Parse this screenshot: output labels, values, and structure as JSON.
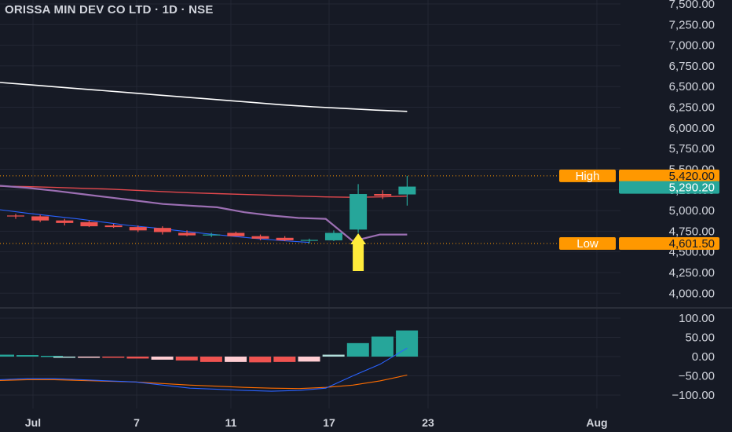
{
  "header": {
    "title": "ORISSA MIN DEV CO LTD · 1D · NSE"
  },
  "colors": {
    "background": "#161a25",
    "grid": "#232734",
    "up": "#26a69a",
    "down": "#ef5350",
    "ma_white": "#ffffff",
    "ma_red": "#e5484d",
    "ma_purple": "#9c6fb3",
    "ma_blue": "#2962ff",
    "tag_orange": "#ff9800",
    "arrow": "#ffeb3b",
    "macd_line": "#2962ff",
    "signal_line": "#ff6d00"
  },
  "chart_data": [
    {
      "type": "candlestick",
      "title": "ORISSA MIN DEV CO LTD · 1D · NSE",
      "x_ticks": [
        "Jul",
        "7",
        "11",
        "17",
        "23",
        "Aug"
      ],
      "y_ticks": [
        "7,500.00",
        "7,250.00",
        "7,000.00",
        "6,750.00",
        "6,500.00",
        "6,250.00",
        "6,000.00",
        "5,750.00",
        "5,500.00",
        "5,250.00",
        "5,000.00",
        "4,750.00",
        "4,500.00",
        "4,250.00",
        "4,000.00"
      ],
      "ylim": [
        3900,
        7550
      ],
      "candles": [
        {
          "date": "Jun 28",
          "open": 4940,
          "high": 4960,
          "low": 4900,
          "close": 4935
        },
        {
          "date": "Jul 1",
          "open": 4930,
          "high": 4950,
          "low": 4860,
          "close": 4880
        },
        {
          "date": "Jul 2",
          "open": 4880,
          "high": 4900,
          "low": 4820,
          "close": 4850
        },
        {
          "date": "Jul 3",
          "open": 4860,
          "high": 4880,
          "low": 4800,
          "close": 4810
        },
        {
          "date": "Jul 4",
          "open": 4820,
          "high": 4840,
          "low": 4790,
          "close": 4800
        },
        {
          "date": "Jul 5",
          "open": 4800,
          "high": 4820,
          "low": 4740,
          "close": 4760
        },
        {
          "date": "Jul 8",
          "open": 4790,
          "high": 4810,
          "low": 4710,
          "close": 4740
        },
        {
          "date": "Jul 9",
          "open": 4730,
          "high": 4760,
          "low": 4690,
          "close": 4700
        },
        {
          "date": "Jul 10",
          "open": 4700,
          "high": 4730,
          "low": 4680,
          "close": 4710
        },
        {
          "date": "Jul 11",
          "open": 4730,
          "high": 4745,
          "low": 4690,
          "close": 4690
        },
        {
          "date": "Jul 12",
          "open": 4690,
          "high": 4710,
          "low": 4640,
          "close": 4660
        },
        {
          "date": "Jul 15",
          "open": 4670,
          "high": 4690,
          "low": 4630,
          "close": 4640
        },
        {
          "date": "Jul 16",
          "open": 4640,
          "high": 4660,
          "low": 4602,
          "close": 4645
        },
        {
          "date": "Jul 18",
          "open": 4640,
          "high": 4760,
          "low": 4630,
          "close": 4730
        },
        {
          "date": "Jul 19",
          "open": 4770,
          "high": 5320,
          "low": 4730,
          "close": 5200
        },
        {
          "date": "Jul 22",
          "open": 5200,
          "high": 5245,
          "low": 5140,
          "close": 5180
        },
        {
          "date": "Jul 23",
          "open": 5195,
          "high": 5420,
          "low": 5060,
          "close": 5290
        }
      ],
      "moving_averages": [
        {
          "color": "white",
          "values": [
            6550,
            6520,
            6490,
            6460,
            6430,
            6400,
            6370,
            6340,
            6310,
            6280,
            6255,
            6235,
            6215,
            6200
          ]
        },
        {
          "color": "red",
          "values": [
            5295,
            5290,
            5280,
            5270,
            5260,
            5245,
            5230,
            5215,
            5205,
            5195,
            5185,
            5175,
            5165,
            5160,
            5165,
            5175
          ]
        },
        {
          "color": "purple",
          "values": [
            5300,
            5275,
            5240,
            5200,
            5160,
            5120,
            5080,
            5060,
            5040,
            4980,
            4940,
            4910,
            4900,
            4630,
            4710,
            4710
          ]
        },
        {
          "color": "blue",
          "values": [
            5010,
            4970,
            4935,
            4900,
            4860,
            4820,
            4790,
            4755,
            4720,
            4690,
            4660,
            4635,
            4615
          ]
        }
      ],
      "price_tags": [
        {
          "label": "High",
          "value": "5,420.00"
        },
        {
          "label": "",
          "value": "5,290.20"
        },
        {
          "label": "Low",
          "value": "4,601.50"
        }
      ]
    },
    {
      "type": "histogram",
      "title": "",
      "y_ticks": [
        "100.00",
        "50.00",
        "0.00",
        "−50.00",
        "−100.00"
      ],
      "ylim": [
        -130,
        120
      ],
      "values": [
        5,
        4,
        2,
        0,
        -1,
        -2,
        -5,
        -8,
        -10,
        -14,
        -14,
        -15,
        -14,
        -13,
        5,
        35,
        52,
        68
      ],
      "macd": [
        -60,
        -57,
        -57,
        -60,
        -63,
        -66,
        -74,
        -82,
        -85,
        -88,
        -90,
        -88,
        -82,
        -50,
        -20,
        22
      ],
      "signal": [
        -62,
        -60,
        -60,
        -62,
        -64,
        -66,
        -70,
        -74,
        -77,
        -80,
        -82,
        -83,
        -80,
        -74,
        -63,
        -48
      ]
    }
  ]
}
